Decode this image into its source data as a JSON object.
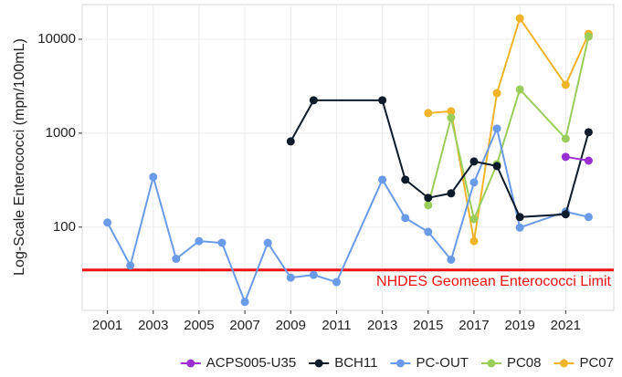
{
  "chart_data": {
    "type": "line",
    "y_label": "Log-Scale Enterococci (mpn/100mL)",
    "log_y": true,
    "grid": true,
    "legend_position": "bottom",
    "xlim": [
      1999.9,
      2023.1
    ],
    "xticks": [
      2001,
      2003,
      2005,
      2007,
      2009,
      2011,
      2013,
      2015,
      2017,
      2019,
      2021
    ],
    "ylim": [
      13,
      23400
    ],
    "yticks": [
      100,
      1000,
      10000
    ],
    "hline": {
      "value": 35,
      "label": "NHDES Geomean Enterococci Limit",
      "color": "#ee1111"
    },
    "series": [
      {
        "name": "ACPS005-U35",
        "color": "#9b30d0",
        "x": [
          2021,
          2022
        ],
        "values": [
          560,
          510
        ]
      },
      {
        "name": "BCH11",
        "color": "#0d1b2a",
        "x": [
          2009,
          2010,
          2013,
          2014,
          2015,
          2016,
          2017,
          2018,
          2019,
          2021,
          2022
        ],
        "values": [
          818,
          2240,
          2240,
          320,
          205,
          229,
          500,
          447,
          128,
          137,
          1024
        ]
      },
      {
        "name": "PC-OUT",
        "color": "#6a9be8",
        "x": [
          2001,
          2002,
          2003,
          2004,
          2005,
          2006,
          2007,
          2008,
          2009,
          2010,
          2011,
          2013,
          2014,
          2015,
          2016,
          2017,
          2018,
          2019,
          2021,
          2022
        ],
        "values": [
          112,
          39,
          342,
          46,
          71,
          68,
          16,
          68,
          29,
          31,
          26,
          320,
          125,
          89,
          45,
          299,
          1120,
          99,
          146,
          128
        ]
      },
      {
        "name": "PC08",
        "color": "#9acd5a",
        "x": [
          2015,
          2016,
          2017,
          2018,
          2019,
          2021,
          2022
        ],
        "values": [
          171,
          1462,
          122,
          468,
          2924,
          875,
          10700
        ]
      },
      {
        "name": "PC07",
        "color": "#f0b429",
        "x": [
          2015,
          2016,
          2017,
          2018,
          2019,
          2021,
          2022
        ],
        "values": [
          1637,
          1710,
          71,
          2670,
          16700,
          3270,
          11400
        ]
      }
    ]
  }
}
